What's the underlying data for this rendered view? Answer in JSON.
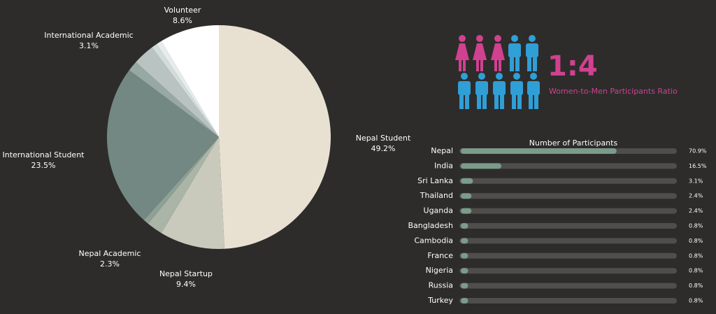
{
  "chart_data": [
    {
      "type": "pie",
      "categories": [
        "Nepal Student",
        "Nepal Startup",
        "Nepal Academic",
        null,
        "International Student",
        null,
        "International Academic",
        null,
        null,
        "Volunteer"
      ],
      "values": [
        49.2,
        9.4,
        2.3,
        0.8,
        23.5,
        1.5,
        3.1,
        0.8,
        0.8,
        8.6
      ],
      "value_labels": [
        "49.2%",
        "9.4%",
        "2.3%",
        null,
        "23.5%",
        null,
        "3.1%",
        null,
        null,
        "8.6%"
      ],
      "colors": [
        "#e8e1d2",
        "#c9cabb",
        "#aab5a7",
        "#8fa096",
        "#738882",
        "#98a8a3",
        "#b9c4c2",
        "#d4dcdb",
        "#e6ecec",
        "#ffffff"
      ]
    },
    {
      "type": "bar",
      "orientation": "horizontal",
      "title": "Number of Participants",
      "categories": [
        "Nepal",
        "India",
        "Sri Lanka",
        "Thailand",
        "Uganda",
        "Bangladesh",
        "Cambodia",
        "France",
        "Nigeria",
        "Russia",
        "Turkey"
      ],
      "values": [
        70.9,
        16.5,
        3.1,
        2.4,
        2.4,
        0.8,
        0.8,
        0.8,
        0.8,
        0.8,
        0.8
      ],
      "value_labels": [
        "70.9%",
        "16.5%",
        "3.1%",
        "2.4%",
        "2.4%",
        "0.8%",
        "0.8%",
        "0.8%",
        "0.8%",
        "0.8%",
        "0.8%"
      ],
      "xlim": [
        0,
        100
      ],
      "color": "#7b9b8b",
      "track_color": "#4f4e4b"
    }
  ],
  "ratio": {
    "value": "1:4",
    "label": "Women-to-Men Participants Ratio"
  }
}
